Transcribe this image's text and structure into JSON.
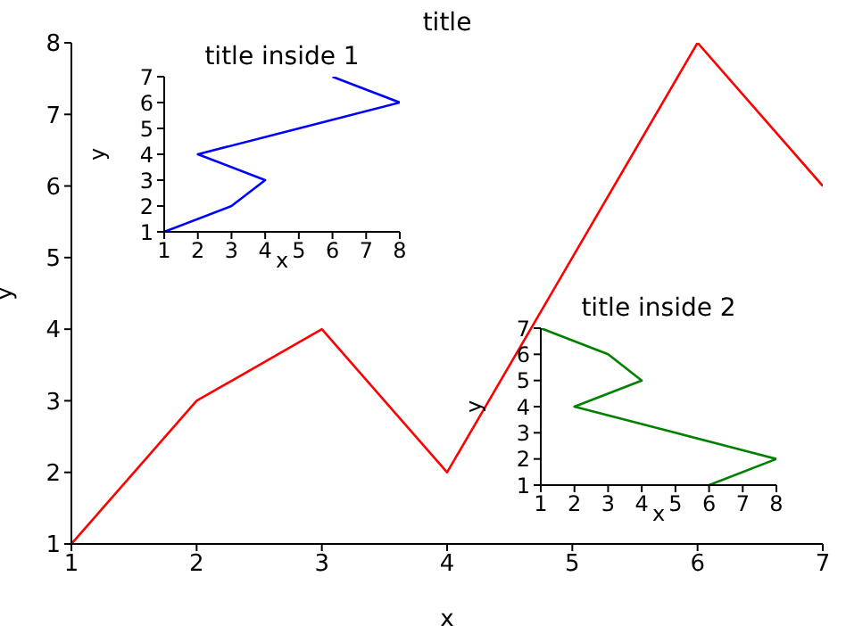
{
  "chart_data": [
    {
      "type": "line",
      "title": "title",
      "xlabel": "x",
      "ylabel": "y",
      "x": [
        1,
        2,
        3,
        4,
        5,
        6,
        7
      ],
      "series": [
        {
          "color": "#ff0000",
          "values": [
            1,
            3,
            4,
            2,
            5,
            8,
            6
          ]
        }
      ],
      "xlim": [
        1,
        7
      ],
      "ylim": [
        1,
        8
      ],
      "xticks": [
        1,
        2,
        3,
        4,
        5,
        6,
        7
      ],
      "yticks": [
        1,
        2,
        3,
        4,
        5,
        6,
        7,
        8
      ],
      "grid": false,
      "legend": false,
      "marker": "none",
      "line_style": "solid"
    },
    {
      "type": "line",
      "title": "title inside 1",
      "xlabel": "x",
      "ylabel": "y",
      "x": [
        1,
        3,
        4,
        2,
        5,
        8,
        6
      ],
      "series": [
        {
          "color": "#0000ff",
          "values": [
            1,
            2,
            3,
            4,
            5,
            6,
            7
          ]
        }
      ],
      "xlim": [
        1,
        8
      ],
      "ylim": [
        1,
        7
      ],
      "xticks": [
        1,
        2,
        3,
        4,
        5,
        6,
        7,
        8
      ],
      "yticks": [
        1,
        2,
        3,
        4,
        5,
        6,
        7
      ],
      "grid": false,
      "legend": false,
      "marker": "none",
      "line_style": "solid"
    },
    {
      "type": "line",
      "title": "title inside 2",
      "xlabel": "x",
      "ylabel": "y",
      "x": [
        6,
        8,
        5,
        2,
        4,
        3,
        1
      ],
      "series": [
        {
          "color": "#008000",
          "values": [
            1,
            2,
            3,
            4,
            5,
            6,
            7
          ]
        }
      ],
      "xlim": [
        1,
        8
      ],
      "ylim": [
        1,
        7
      ],
      "xticks": [
        1,
        2,
        3,
        4,
        5,
        6,
        7,
        8
      ],
      "yticks": [
        1,
        2,
        3,
        4,
        5,
        6,
        7
      ],
      "grid": false,
      "legend": false,
      "marker": "none",
      "line_style": "solid"
    }
  ]
}
